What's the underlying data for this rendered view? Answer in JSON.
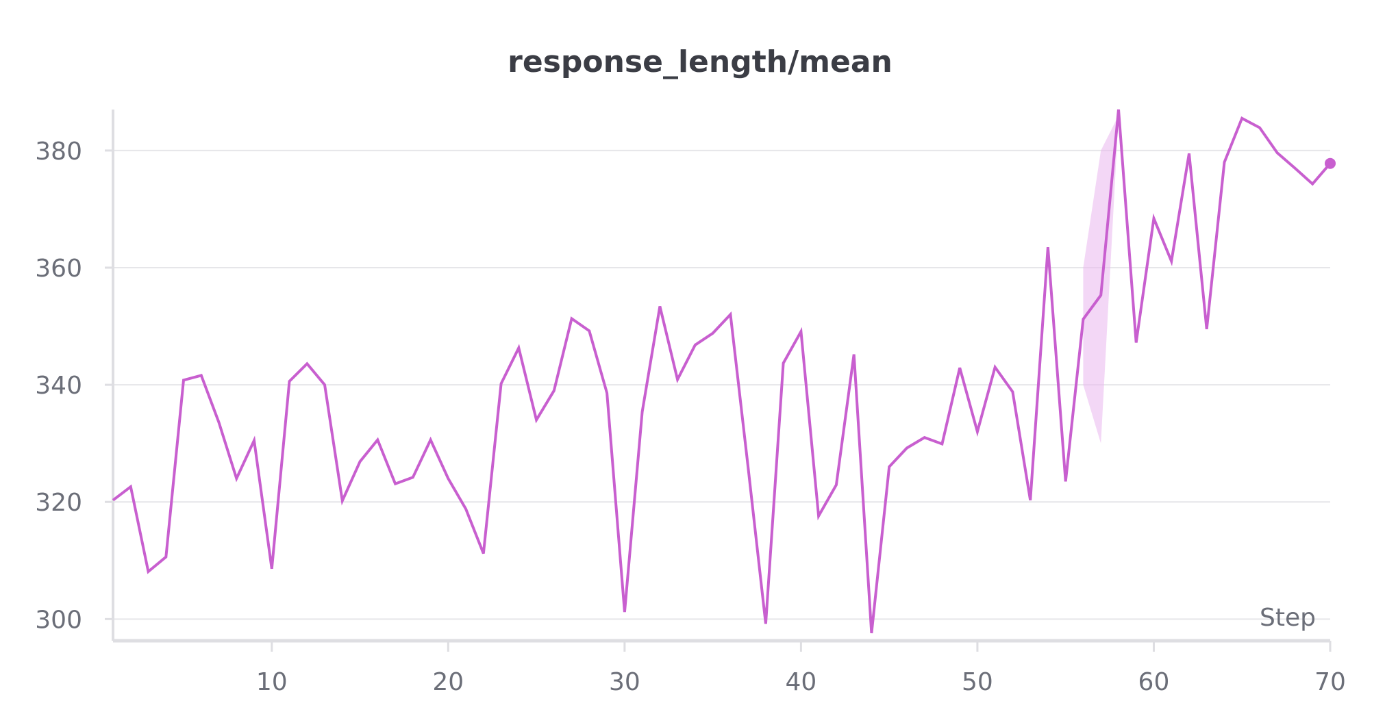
{
  "chart_data": {
    "type": "line",
    "title": "response_length/mean",
    "xlabel": "Step",
    "ylabel": "",
    "xlim": [
      1,
      70
    ],
    "ylim": [
      297,
      387
    ],
    "x_ticks": [
      10,
      20,
      30,
      40,
      50,
      60,
      70
    ],
    "y_ticks": [
      300,
      320,
      340,
      360,
      380
    ],
    "grid": true,
    "colors": {
      "line": "#c85fcf",
      "band": "#e9b6ee",
      "grid": "#e6e6e9",
      "axis": "#dedee2"
    },
    "series": [
      {
        "x": [
          1,
          2,
          3,
          4,
          5,
          6,
          7,
          8,
          9,
          10,
          11,
          12,
          13,
          14,
          15,
          16,
          17,
          18,
          19,
          20,
          21,
          22,
          23,
          24,
          25,
          26,
          27,
          28,
          29,
          30,
          31,
          32,
          33,
          34,
          35,
          36,
          37,
          38,
          39,
          40,
          41,
          42,
          43,
          44,
          45,
          46,
          47,
          48,
          49,
          50,
          51,
          52,
          53,
          54,
          55,
          56,
          57,
          58,
          59,
          60,
          61,
          62,
          63,
          64,
          65,
          66,
          67,
          68,
          69,
          70
        ],
        "values": [
          320.3,
          322.6,
          308.1,
          310.6,
          340.8,
          341.6,
          333.6,
          324.0,
          330.5,
          308.6,
          340.6,
          343.6,
          340.0,
          320.2,
          326.9,
          330.6,
          323.1,
          324.2,
          330.6,
          324.0,
          318.8,
          311.2,
          340.2,
          346.3,
          334.0,
          339.0,
          351.3,
          349.2,
          338.6,
          301.2,
          335.4,
          353.4,
          340.9,
          346.8,
          348.8,
          352.0,
          326.0,
          299.2,
          343.7,
          349.1,
          317.6,
          322.9,
          345.2,
          297.6,
          326.0,
          329.2,
          331.0,
          329.9,
          342.9,
          332.0,
          343.0,
          338.8,
          320.3,
          363.5,
          323.5,
          351.2,
          355.3,
          387.0,
          347.2,
          368.4,
          361.1,
          379.5,
          349.5,
          378.0,
          385.5,
          383.9,
          379.6,
          377.0,
          374.3,
          377.8
        ]
      }
    ],
    "band": {
      "x": [
        56,
        57,
        58
      ],
      "upper": [
        360.0,
        380.0,
        386.0
      ],
      "lower": [
        340.0,
        330.0,
        386.0
      ]
    }
  }
}
